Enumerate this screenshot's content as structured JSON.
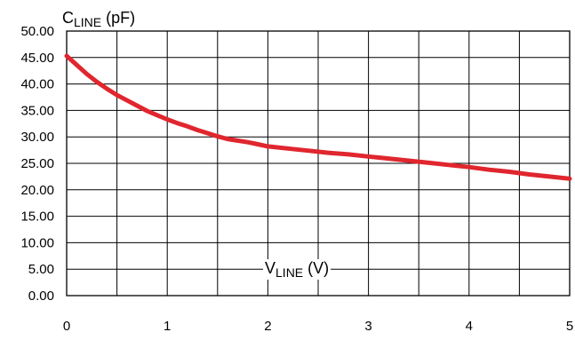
{
  "chart_data": {
    "type": "line",
    "title": "",
    "ylabel": {
      "main": "C",
      "sub": "LINE",
      "unit": " (pF)"
    },
    "xlabel": {
      "main": "V",
      "sub": "LINE",
      "unit": " (V)"
    },
    "xlim": [
      0,
      5
    ],
    "ylim": [
      0,
      50
    ],
    "x_ticks": [
      "0",
      "1",
      "2",
      "3",
      "4",
      "5"
    ],
    "y_ticks": [
      "0.00",
      "5.00",
      "10.00",
      "15.00",
      "20.00",
      "25.00",
      "30.00",
      "35.00",
      "40.00",
      "45.00",
      "50.00"
    ],
    "grid": true,
    "series": [
      {
        "color": "#e0262e",
        "x": [
          0,
          0.1,
          0.2,
          0.3,
          0.4,
          0.5,
          0.6,
          0.7,
          0.8,
          0.9,
          1.0,
          1.1,
          1.2,
          1.3,
          1.4,
          1.5,
          1.6,
          1.7,
          1.8,
          1.9,
          2.0,
          2.2,
          2.4,
          2.6,
          2.8,
          3.0,
          3.2,
          3.4,
          3.6,
          3.8,
          4.0,
          4.2,
          4.4,
          4.6,
          4.8,
          5.0
        ],
        "y": [
          45.3,
          43.6,
          41.9,
          40.4,
          39.1,
          37.9,
          36.9,
          35.9,
          34.9,
          34.1,
          33.3,
          32.6,
          32.0,
          31.3,
          30.7,
          30.1,
          29.6,
          29.3,
          29.0,
          28.6,
          28.2,
          27.8,
          27.4,
          27.0,
          26.7,
          26.3,
          25.9,
          25.5,
          25.1,
          24.7,
          24.3,
          23.8,
          23.4,
          22.9,
          22.5,
          22.1
        ]
      }
    ]
  }
}
